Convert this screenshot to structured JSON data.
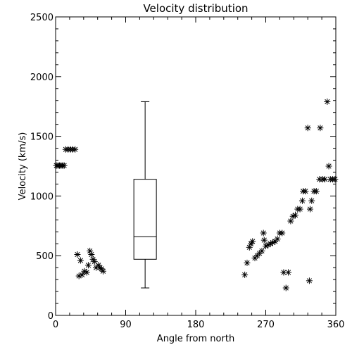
{
  "chart_data": {
    "type": "scatter",
    "title": "Velocity distribution",
    "xlabel": "Angle from north",
    "ylabel": "Velocity (km/s)",
    "xlim": [
      0,
      360
    ],
    "ylim": [
      0,
      2500
    ],
    "xticks": [
      "0",
      "90",
      "180",
      "270",
      "360"
    ],
    "xtick_values": [
      0,
      90,
      180,
      270,
      360
    ],
    "yticks": [
      "0",
      "500",
      "1000",
      "1500",
      "2000",
      "2500"
    ],
    "ytick_values": [
      0,
      500,
      1000,
      1500,
      2000,
      2500
    ],
    "grid": false,
    "marker": "asterisk",
    "points": [
      [
        1,
        1255
      ],
      [
        3,
        1255
      ],
      [
        5,
        1255
      ],
      [
        7,
        1255
      ],
      [
        9,
        1255
      ],
      [
        11,
        1255
      ],
      [
        13,
        1390
      ],
      [
        16,
        1390
      ],
      [
        19,
        1390
      ],
      [
        22,
        1390
      ],
      [
        25,
        1390
      ],
      [
        28,
        510
      ],
      [
        30,
        330
      ],
      [
        32,
        460
      ],
      [
        34,
        340
      ],
      [
        37,
        370
      ],
      [
        40,
        360
      ],
      [
        42,
        420
      ],
      [
        44,
        540
      ],
      [
        46,
        510
      ],
      [
        48,
        470
      ],
      [
        50,
        450
      ],
      [
        52,
        400
      ],
      [
        55,
        420
      ],
      [
        57,
        400
      ],
      [
        59,
        390
      ],
      [
        61,
        370
      ],
      [
        243,
        340
      ],
      [
        246,
        440
      ],
      [
        249,
        570
      ],
      [
        251,
        600
      ],
      [
        253,
        620
      ],
      [
        256,
        480
      ],
      [
        259,
        500
      ],
      [
        262,
        520
      ],
      [
        265,
        540
      ],
      [
        267,
        690
      ],
      [
        268,
        630
      ],
      [
        270,
        580
      ],
      [
        273,
        590
      ],
      [
        276,
        600
      ],
      [
        279,
        610
      ],
      [
        282,
        620
      ],
      [
        285,
        640
      ],
      [
        288,
        690
      ],
      [
        291,
        690
      ],
      [
        293,
        360
      ],
      [
        296,
        230
      ],
      [
        299,
        360
      ],
      [
        302,
        790
      ],
      [
        305,
        830
      ],
      [
        308,
        840
      ],
      [
        311,
        890
      ],
      [
        314,
        890
      ],
      [
        317,
        960
      ],
      [
        318,
        1040
      ],
      [
        321,
        1040
      ],
      [
        324,
        1570
      ],
      [
        326,
        290
      ],
      [
        327,
        890
      ],
      [
        329,
        960
      ],
      [
        332,
        1040
      ],
      [
        335,
        1040
      ],
      [
        339,
        1140
      ],
      [
        340,
        1570
      ],
      [
        343,
        1140
      ],
      [
        346,
        1140
      ],
      [
        349,
        1790
      ],
      [
        351,
        1250
      ],
      [
        353,
        1140
      ],
      [
        356,
        1140
      ],
      [
        359,
        1140
      ]
    ],
    "boxplot": {
      "x": 115,
      "min": 230,
      "q1": 470,
      "median": 660,
      "q3": 1140,
      "max": 1790
    }
  }
}
